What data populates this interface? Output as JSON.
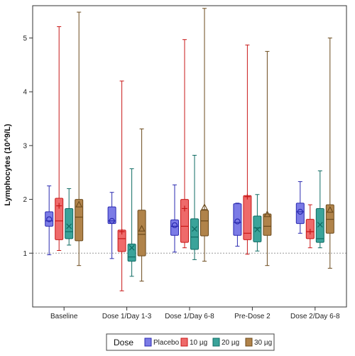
{
  "chart_data": {
    "type": "box",
    "title": "",
    "xlabel": "",
    "ylabel": "Lymphocytes (10^9/L)",
    "ylim": [
      0.0,
      5.6
    ],
    "yticks": [
      1,
      2,
      3,
      4,
      5
    ],
    "reference_line": 1.0,
    "categories": [
      "Baseline",
      "Dose 1/Day 1-3",
      "Dose 1/Day 6-8",
      "Pre-Dose 2",
      "Dose 2/Day 6-8"
    ],
    "legend": {
      "title": "Dose",
      "position": "bottom"
    },
    "series": [
      {
        "name": "Placebo",
        "color": "#7b7be6",
        "edge": "#2a2ab0",
        "marker": "circle",
        "boxes": [
          {
            "min": 0.97,
            "q1": 1.5,
            "median": 1.6,
            "q3": 1.77,
            "max": 2.25,
            "mean": 1.63
          },
          {
            "min": 0.9,
            "q1": 1.55,
            "median": 1.6,
            "q3": 1.86,
            "max": 2.13,
            "mean": 1.6
          },
          {
            "min": 1.02,
            "q1": 1.33,
            "median": 1.5,
            "q3": 1.62,
            "max": 2.27,
            "mean": 1.52
          },
          {
            "min": 1.13,
            "q1": 1.33,
            "median": 1.57,
            "q3": 1.92,
            "max": 1.93,
            "mean": 1.59
          },
          {
            "min": 1.37,
            "q1": 1.55,
            "median": 1.77,
            "q3": 1.93,
            "max": 2.33,
            "mean": 1.77
          }
        ]
      },
      {
        "name": "10 µg",
        "color": "#ee6a6a",
        "edge": "#c81818",
        "marker": "plus",
        "boxes": [
          {
            "min": 1.05,
            "q1": 1.25,
            "median": 1.6,
            "q3": 2.02,
            "max": 5.21,
            "mean": 1.88
          },
          {
            "min": 0.3,
            "q1": 1.03,
            "median": 1.27,
            "q3": 1.43,
            "max": 4.2,
            "mean": 1.4
          },
          {
            "min": 1.1,
            "q1": 1.2,
            "median": 1.5,
            "q3": 2.0,
            "max": 4.97,
            "mean": 1.83
          },
          {
            "min": 0.98,
            "q1": 1.25,
            "median": 1.37,
            "q3": 2.07,
            "max": 4.87,
            "mean": 2.05
          },
          {
            "min": 1.1,
            "q1": 1.27,
            "median": 1.4,
            "q3": 1.63,
            "max": 1.9,
            "mean": 1.4
          }
        ]
      },
      {
        "name": "20 µg",
        "color": "#3aa39a",
        "edge": "#0f6b63",
        "marker": "x",
        "boxes": [
          {
            "min": 1.15,
            "q1": 1.27,
            "median": 1.4,
            "q3": 1.83,
            "max": 2.2,
            "mean": 1.5
          },
          {
            "min": 0.57,
            "q1": 0.85,
            "median": 0.93,
            "q3": 1.17,
            "max": 2.57,
            "mean": 1.1
          },
          {
            "min": 0.88,
            "q1": 1.07,
            "median": 1.3,
            "q3": 1.64,
            "max": 2.82,
            "mean": 1.45
          },
          {
            "min": 1.04,
            "q1": 1.21,
            "median": 1.47,
            "q3": 1.69,
            "max": 2.09,
            "mean": 1.44
          },
          {
            "min": 1.1,
            "q1": 1.2,
            "median": 1.27,
            "q3": 1.83,
            "max": 2.53,
            "mean": 1.53
          }
        ]
      },
      {
        "name": "30 µg",
        "color": "#b0834a",
        "edge": "#6b4a1c",
        "marker": "triangle",
        "boxes": [
          {
            "min": 0.77,
            "q1": 1.23,
            "median": 1.67,
            "q3": 2.0,
            "max": 5.48,
            "mean": 1.9
          },
          {
            "min": 0.48,
            "q1": 0.95,
            "median": 1.35,
            "q3": 1.8,
            "max": 3.31,
            "mean": 1.45
          },
          {
            "min": 0.85,
            "q1": 1.32,
            "median": 1.6,
            "q3": 1.8,
            "max": 5.55,
            "mean": 1.85
          },
          {
            "min": 0.77,
            "q1": 1.33,
            "median": 1.5,
            "q3": 1.73,
            "max": 4.75,
            "mean": 1.72
          },
          {
            "min": 0.72,
            "q1": 1.37,
            "median": 1.63,
            "q3": 1.9,
            "max": 5.0,
            "mean": 1.8
          }
        ]
      }
    ]
  }
}
